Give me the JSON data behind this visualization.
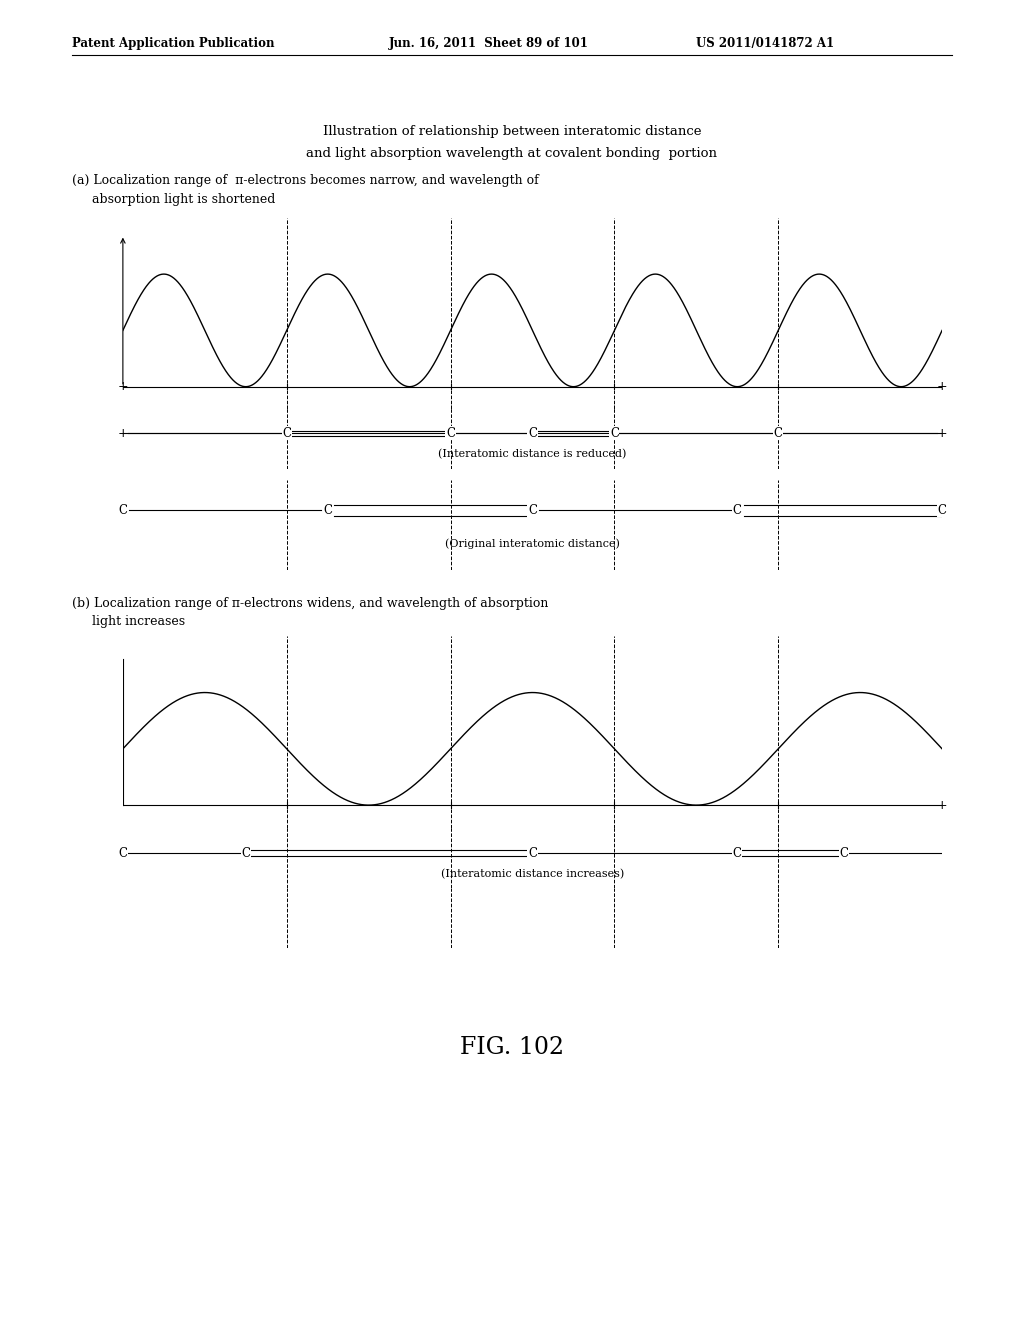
{
  "background_color": "#ffffff",
  "header_left": "Patent Application Publication",
  "header_mid": "Jun. 16, 2011  Sheet 89 of 101",
  "header_right": "US 2011/0141872 A1",
  "main_title_line1": "Illustration of relationship between interatomic distance",
  "main_title_line2": "and light absorption wavelength at covalent bonding  portion",
  "label_a": "(a) Localization range of  π-electrons becomes narrow, and wavelength of",
  "label_a2": "     absorption light is shortened",
  "label_b": "(b) Localization range of π-electrons widens, and wavelength of absorption",
  "label_b2": "     light increases",
  "fig_label": "FIG. 102",
  "bond_label_a_reduced": "(Interatomic distance is reduced)",
  "bond_label_a_original": "(Original interatomic distance)",
  "bond_label_b": "(Interatomic distance increases)"
}
